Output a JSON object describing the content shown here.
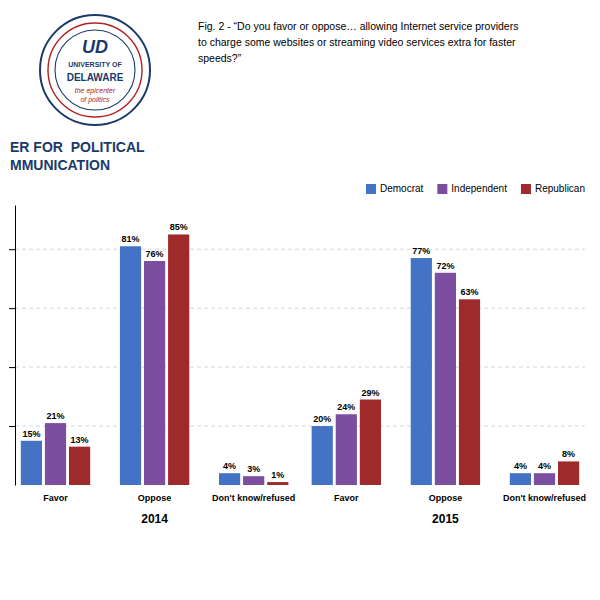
{
  "chart_data": {
    "type": "bar",
    "title": [
      "Fig. 2 - “Do you favor or oppose… allowing Internet service providers",
      "to charge some websites or streaming video services extra for faster",
      "speeds?”"
    ],
    "categories": [
      "Favor",
      "Oppose",
      "Don't know/refused",
      "Favor",
      "Oppose",
      "Don't know/refused"
    ],
    "category_groups": [
      "2014",
      "2014",
      "2014",
      "2015",
      "2015",
      "2015"
    ],
    "series": [
      {
        "name": "Democrat",
        "color": "#4472c4",
        "values": [
          15,
          81,
          4,
          20,
          77,
          4
        ],
        "value_labels": [
          "15%",
          "81%",
          "4%",
          "20%",
          "77%",
          "4%"
        ]
      },
      {
        "name": "Independent",
        "color": "#7b4ea0",
        "values": [
          21,
          76,
          3,
          24,
          72,
          4
        ],
        "value_labels": [
          "21%",
          "76%",
          "3%",
          "24%",
          "72%",
          "4%"
        ]
      },
      {
        "name": "Republican",
        "color": "#9e2a2b",
        "values": [
          13,
          85,
          1,
          29,
          63,
          8
        ],
        "value_labels": [
          "13%",
          "85%",
          "1%",
          "29%",
          "63%",
          "8%"
        ]
      }
    ],
    "ylim": [
      0,
      95
    ],
    "yticks": [
      20,
      40,
      60,
      80
    ],
    "grid": true,
    "legend": "upper right",
    "data_labels": true,
    "tick_labels": false,
    "annotations": [
      {
        "text": "UD",
        "color": "#1a3a6b"
      },
      {
        "text": "UNIVERSITY OF",
        "color": "#1a3a6b"
      },
      {
        "text": "DELAWARE",
        "color": "#1a3a6b"
      },
      {
        "text": "the epicenter",
        "color": "#b22222"
      },
      {
        "text": "of politics",
        "color": "#b22222"
      },
      {
        "text": "ER FOR  POLITICAL",
        "color": "#1a3a6b"
      },
      {
        "text": "MMUNICATION",
        "color": "#1a3a6b"
      }
    ]
  }
}
